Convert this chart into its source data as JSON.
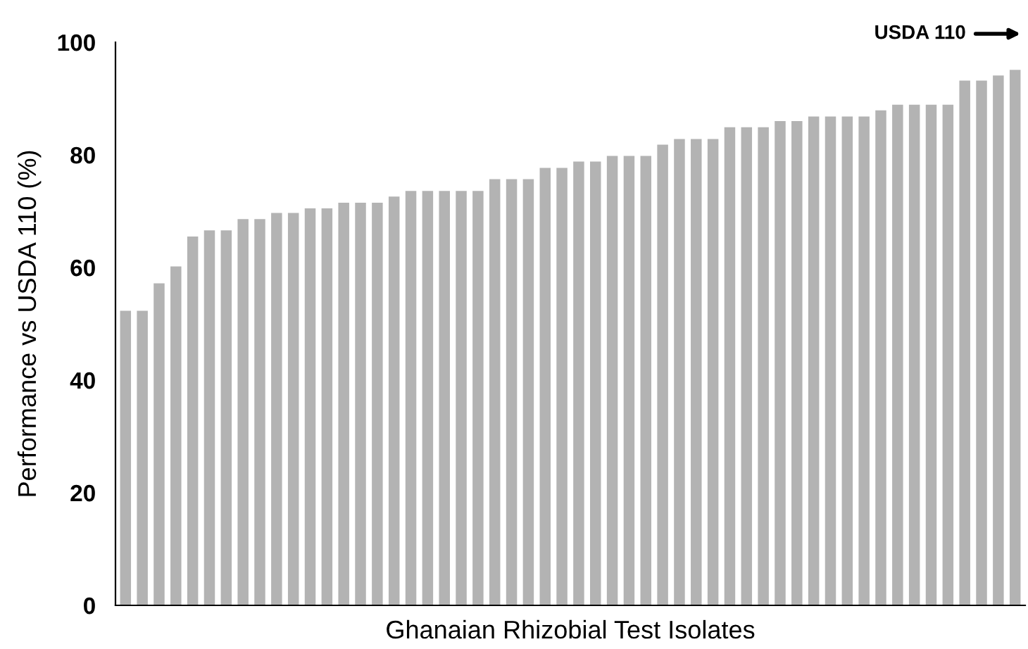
{
  "chart_data": {
    "type": "bar",
    "xlabel": "Ghanaian Rhizobial Test Isolates",
    "ylabel": "Performance vs USDA 110 (%)",
    "annotations": [
      "USDA 110"
    ],
    "categories": [
      null,
      null,
      null,
      null,
      null,
      null,
      null,
      null,
      null,
      null,
      null,
      null,
      null,
      null,
      null,
      null,
      null,
      null,
      null,
      null,
      null,
      null,
      null,
      null,
      null,
      null,
      null,
      null,
      null,
      null,
      null,
      null,
      null,
      null,
      null,
      null,
      null,
      null,
      null,
      null,
      null,
      null,
      null,
      null,
      null,
      null,
      null,
      null,
      null,
      null,
      null,
      null,
      null,
      null
    ],
    "values": [
      52.3,
      52.3,
      57.2,
      60.2,
      65.5,
      66.6,
      66.6,
      68.6,
      68.6,
      69.7,
      69.7,
      70.5,
      70.5,
      71.5,
      71.5,
      71.5,
      72.6,
      73.6,
      73.6,
      73.6,
      73.6,
      73.6,
      75.7,
      75.7,
      75.7,
      77.7,
      77.7,
      78.8,
      78.8,
      79.8,
      79.8,
      79.8,
      81.8,
      82.8,
      82.8,
      82.8,
      84.9,
      84.9,
      84.9,
      86.0,
      86.0,
      86.8,
      86.8,
      86.8,
      86.8,
      87.9,
      88.9,
      88.9,
      88.9,
      88.9,
      93.2,
      93.2,
      94.1,
      95.1
    ],
    "color": "#b3b3b3",
    "ylim": [
      0,
      100
    ],
    "yticks": [
      0,
      20,
      40,
      60,
      80,
      100
    ],
    "grid": false,
    "legend": false
  }
}
